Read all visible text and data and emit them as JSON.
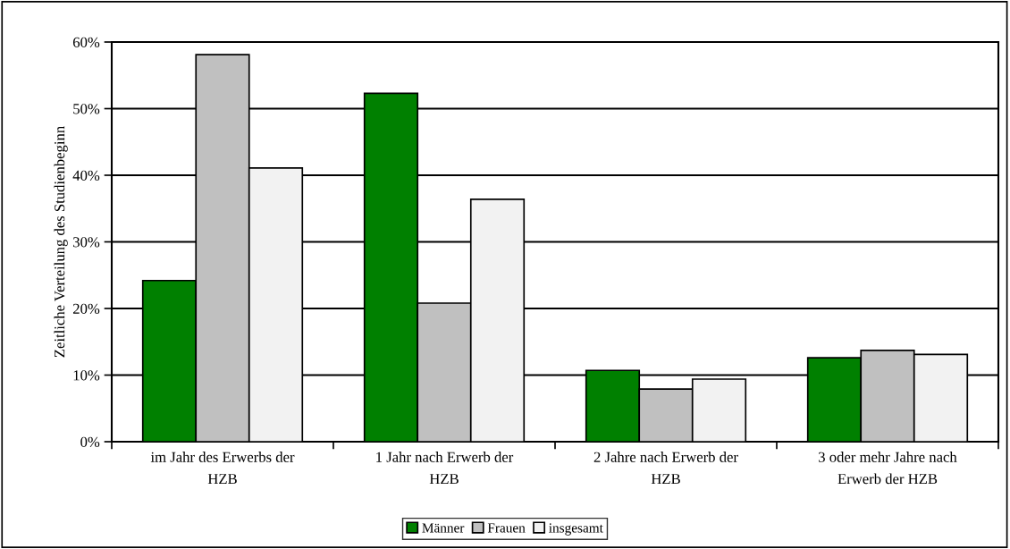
{
  "chart_data": {
    "type": "bar",
    "ylabel": "Zeitliche Verteilung des Studienbeginn",
    "categories": [
      "im Jahr des Erwerbs der\nHZB",
      "1 Jahr nach Erwerb der\nHZB",
      "2 Jahre nach Erwerb der\nHZB",
      "3 oder mehr Jahre nach\nErwerb der HZB"
    ],
    "series": [
      {
        "name": "Männer",
        "color": "#008000",
        "values": [
          24.2,
          52.3,
          10.7,
          12.6
        ]
      },
      {
        "name": "Frauen",
        "color": "#c0c0c0",
        "values": [
          58.1,
          20.8,
          7.9,
          13.7
        ]
      },
      {
        "name": "insgesamt",
        "color": "#f2f2f2",
        "values": [
          41.1,
          36.4,
          9.4,
          13.1
        ]
      }
    ],
    "ylim": [
      0,
      60
    ],
    "yticks": [
      {
        "value": 0,
        "label": "0%"
      },
      {
        "value": 10,
        "label": "10%"
      },
      {
        "value": 20,
        "label": "20%"
      },
      {
        "value": 30,
        "label": "30%"
      },
      {
        "value": 40,
        "label": "40%"
      },
      {
        "value": 50,
        "label": "50%"
      },
      {
        "value": 60,
        "label": "60%"
      }
    ],
    "grid": "y",
    "legend": "bottom"
  }
}
